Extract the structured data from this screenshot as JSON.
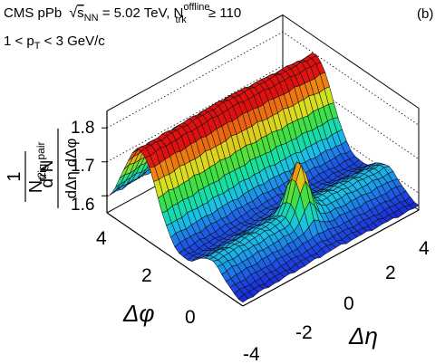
{
  "chart_data": {
    "type": "surface3d",
    "panel_label": "(b)",
    "header": {
      "experiment": "CMS pPb",
      "sqrt_s": "s",
      "sqrt_s_sub": "NN",
      "energy": " = 5.02 TeV, N",
      "ntrk_sup": "offline",
      "ntrk_sub": "trk",
      "ntrk_cut": " ≥ 110"
    },
    "pt_range": {
      "lo": "1 < p",
      "sub": "T",
      "hi": " < 3 GeV/c"
    },
    "zlabel": {
      "frac_num": "1",
      "frac_den": "N",
      "frac_den_sub": "trig",
      "num": "d",
      "num_sup": "2",
      "num_N": "N",
      "num_sup2": "pair",
      "den": "dΔη dΔφ"
    },
    "xlabel": "Δη",
    "ylabel": "Δφ",
    "z_ticks": [
      "1.6",
      "1.7",
      "1.8"
    ],
    "eta_ticks": [
      "-4",
      "-2",
      "0",
      "2",
      "4"
    ],
    "phi_ticks": [
      "0",
      "2",
      "4"
    ],
    "eta_range": [
      -4.5,
      4.5
    ],
    "phi_range": [
      -1.4,
      4.6
    ],
    "z_range": [
      1.55,
      1.85
    ],
    "near_side_peak": 1.72,
    "ridge_level": 1.66,
    "away_side_max": 1.8,
    "baseline": 1.56,
    "colormap": [
      "#1a22d8",
      "#1e66e8",
      "#19c0e6",
      "#15e0a0",
      "#40e040",
      "#d8e020",
      "#f08a10",
      "#e01010"
    ]
  }
}
